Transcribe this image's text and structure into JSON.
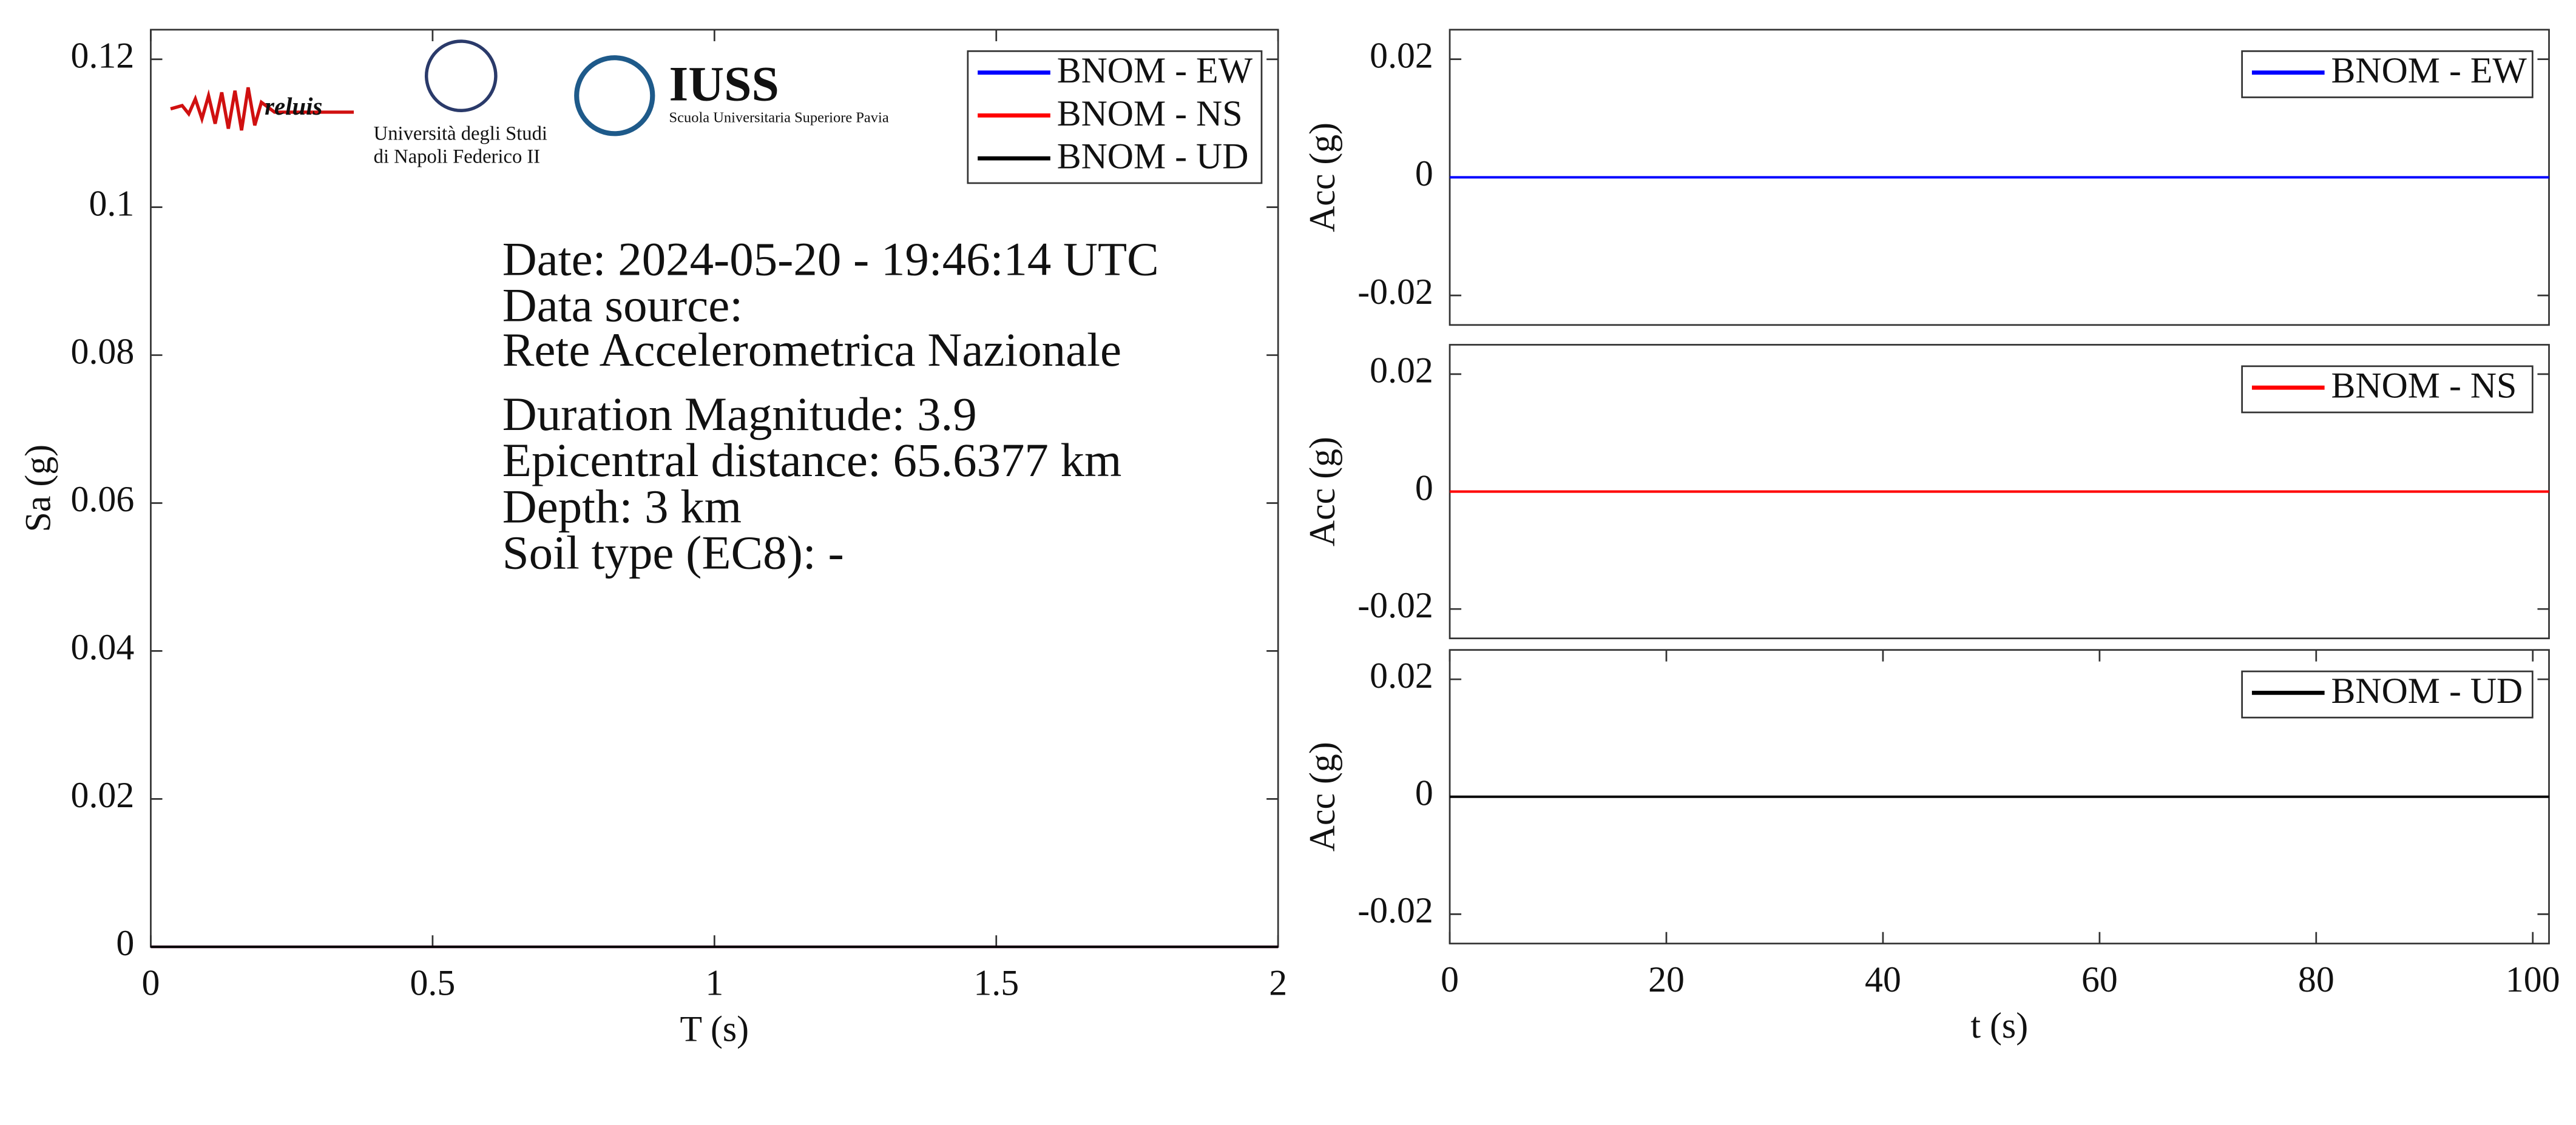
{
  "chart_data": [
    {
      "type": "line",
      "xlabel": "T (s)",
      "ylabel": "Sa (g)",
      "x": [
        0,
        0.5,
        1,
        1.5,
        2
      ],
      "series": [
        {
          "name": "BNOM - EW",
          "color": "#0000ff",
          "values": [
            0,
            0,
            0,
            0,
            0
          ]
        },
        {
          "name": "BNOM - NS",
          "color": "#ff0000",
          "values": [
            0,
            0,
            0,
            0,
            0
          ]
        },
        {
          "name": "BNOM - UD",
          "color": "#000000",
          "values": [
            0,
            0,
            0,
            0,
            0
          ]
        }
      ],
      "xlim": [
        0,
        2
      ],
      "ylim": [
        0,
        0.124
      ],
      "xticks": [
        0,
        0.5,
        1,
        1.5,
        2
      ],
      "yticks": [
        0,
        0.02,
        0.04,
        0.06,
        0.08,
        0.1,
        0.12
      ],
      "legend": "northeast",
      "annotations": [
        "Date: 2024-05-20 - 19:46:14 UTC",
        "Data source:",
        "Rete Accelerometrica Nazionale",
        "Duration Magnitude: 3.9",
        "Epicentral distance: 65.6377 km",
        "Depth: 3 km",
        "Soil type (EC8): -"
      ],
      "logos": [
        "reluis",
        "Università degli Studi",
        "di Napoli Federico II",
        "IUSS",
        "Scuola Universitaria Superiore Pavia"
      ]
    },
    {
      "type": "line",
      "ylabel": "Acc (g)",
      "x": [
        0,
        101.5
      ],
      "series": [
        {
          "name": "BNOM - EW",
          "color": "#0000ff",
          "values": [
            0,
            0
          ]
        }
      ],
      "xlim": [
        0,
        101.5
      ],
      "ylim": [
        -0.025,
        0.025
      ],
      "yticks": [
        -0.02,
        0,
        0.02
      ],
      "legend": "northeast"
    },
    {
      "type": "line",
      "ylabel": "Acc (g)",
      "x": [
        0,
        101.5
      ],
      "series": [
        {
          "name": "BNOM - NS",
          "color": "#ff0000",
          "values": [
            0,
            0
          ]
        }
      ],
      "xlim": [
        0,
        101.5
      ],
      "ylim": [
        -0.025,
        0.025
      ],
      "yticks": [
        -0.02,
        0,
        0.02
      ],
      "legend": "northeast"
    },
    {
      "type": "line",
      "xlabel": "t (s)",
      "ylabel": "Acc (g)",
      "x": [
        0,
        101.5
      ],
      "series": [
        {
          "name": "BNOM - UD",
          "color": "#000000",
          "values": [
            0,
            0
          ]
        }
      ],
      "xlim": [
        0,
        101.5
      ],
      "ylim": [
        -0.025,
        0.025
      ],
      "xticks": [
        0,
        20,
        40,
        60,
        80,
        100
      ],
      "yticks": [
        -0.02,
        0,
        0.02
      ],
      "legend": "northeast"
    }
  ]
}
